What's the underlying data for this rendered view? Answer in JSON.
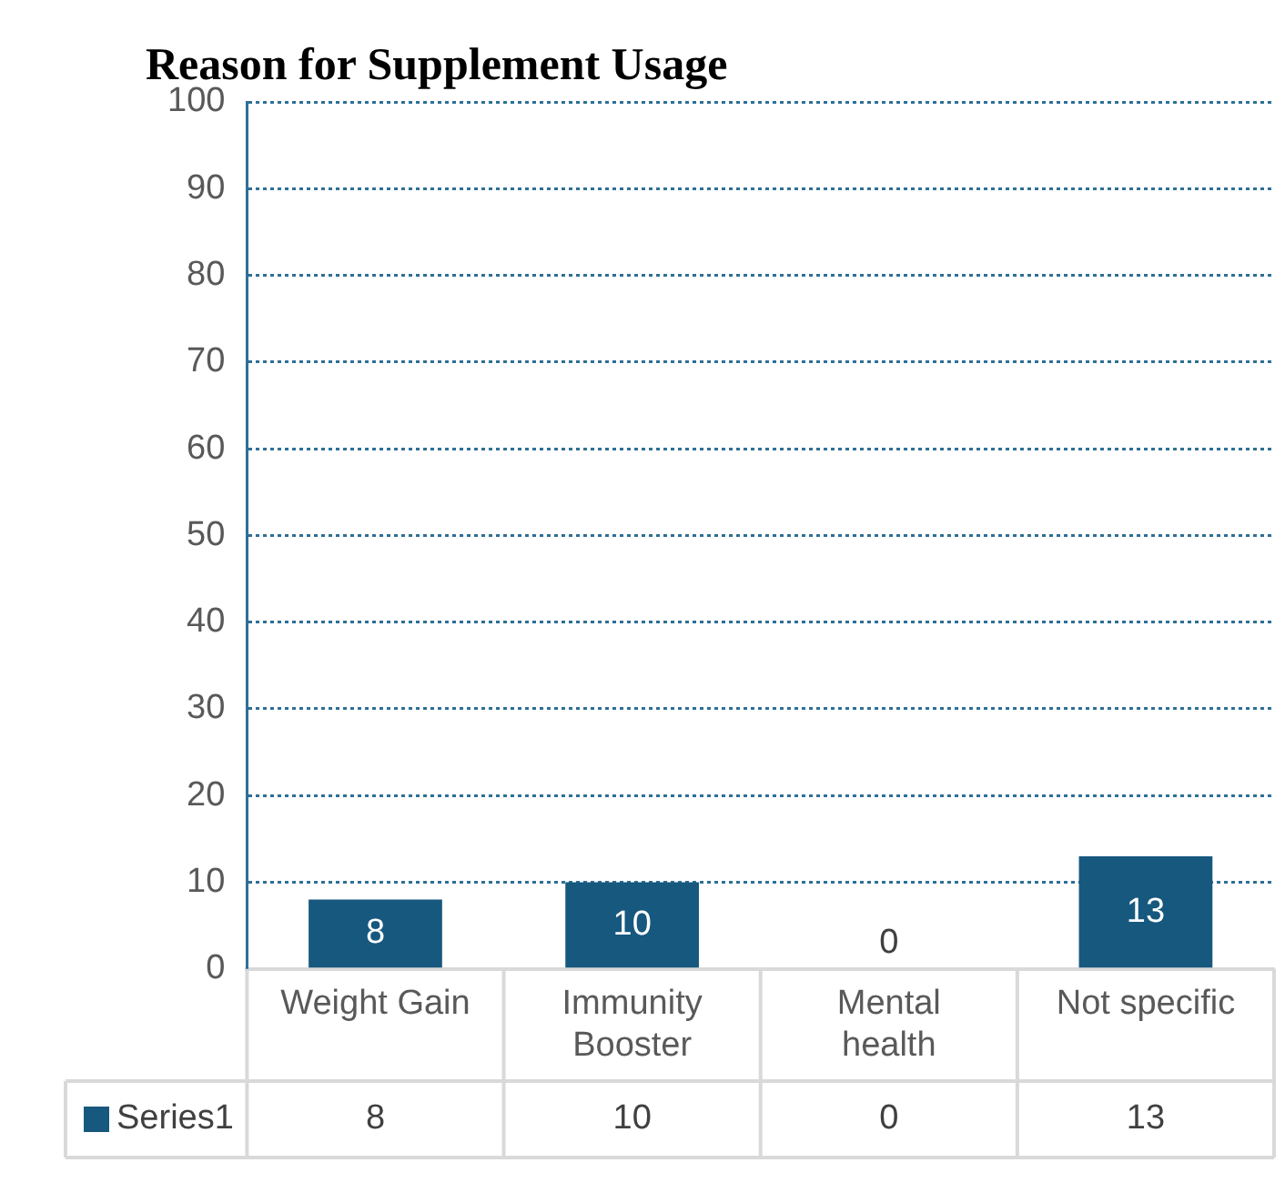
{
  "chart_data": {
    "type": "bar",
    "title": "Reason for Supplement Usage",
    "categories": [
      "Weight Gain",
      "Immunity Booster",
      "Mental health",
      "Not specific"
    ],
    "series": [
      {
        "name": "Series1",
        "color": "#17587e",
        "values": [
          8,
          10,
          0,
          13
        ],
        "value_labels": [
          "8",
          "10",
          "0",
          "13"
        ]
      }
    ],
    "annotations": [
      "8",
      "10",
      "0",
      "13"
    ],
    "ylim": [
      0,
      100
    ],
    "yticks": [
      0,
      10,
      20,
      30,
      40,
      50,
      60,
      70,
      80,
      90,
      100
    ],
    "grid": "y",
    "legend": "bottom"
  }
}
